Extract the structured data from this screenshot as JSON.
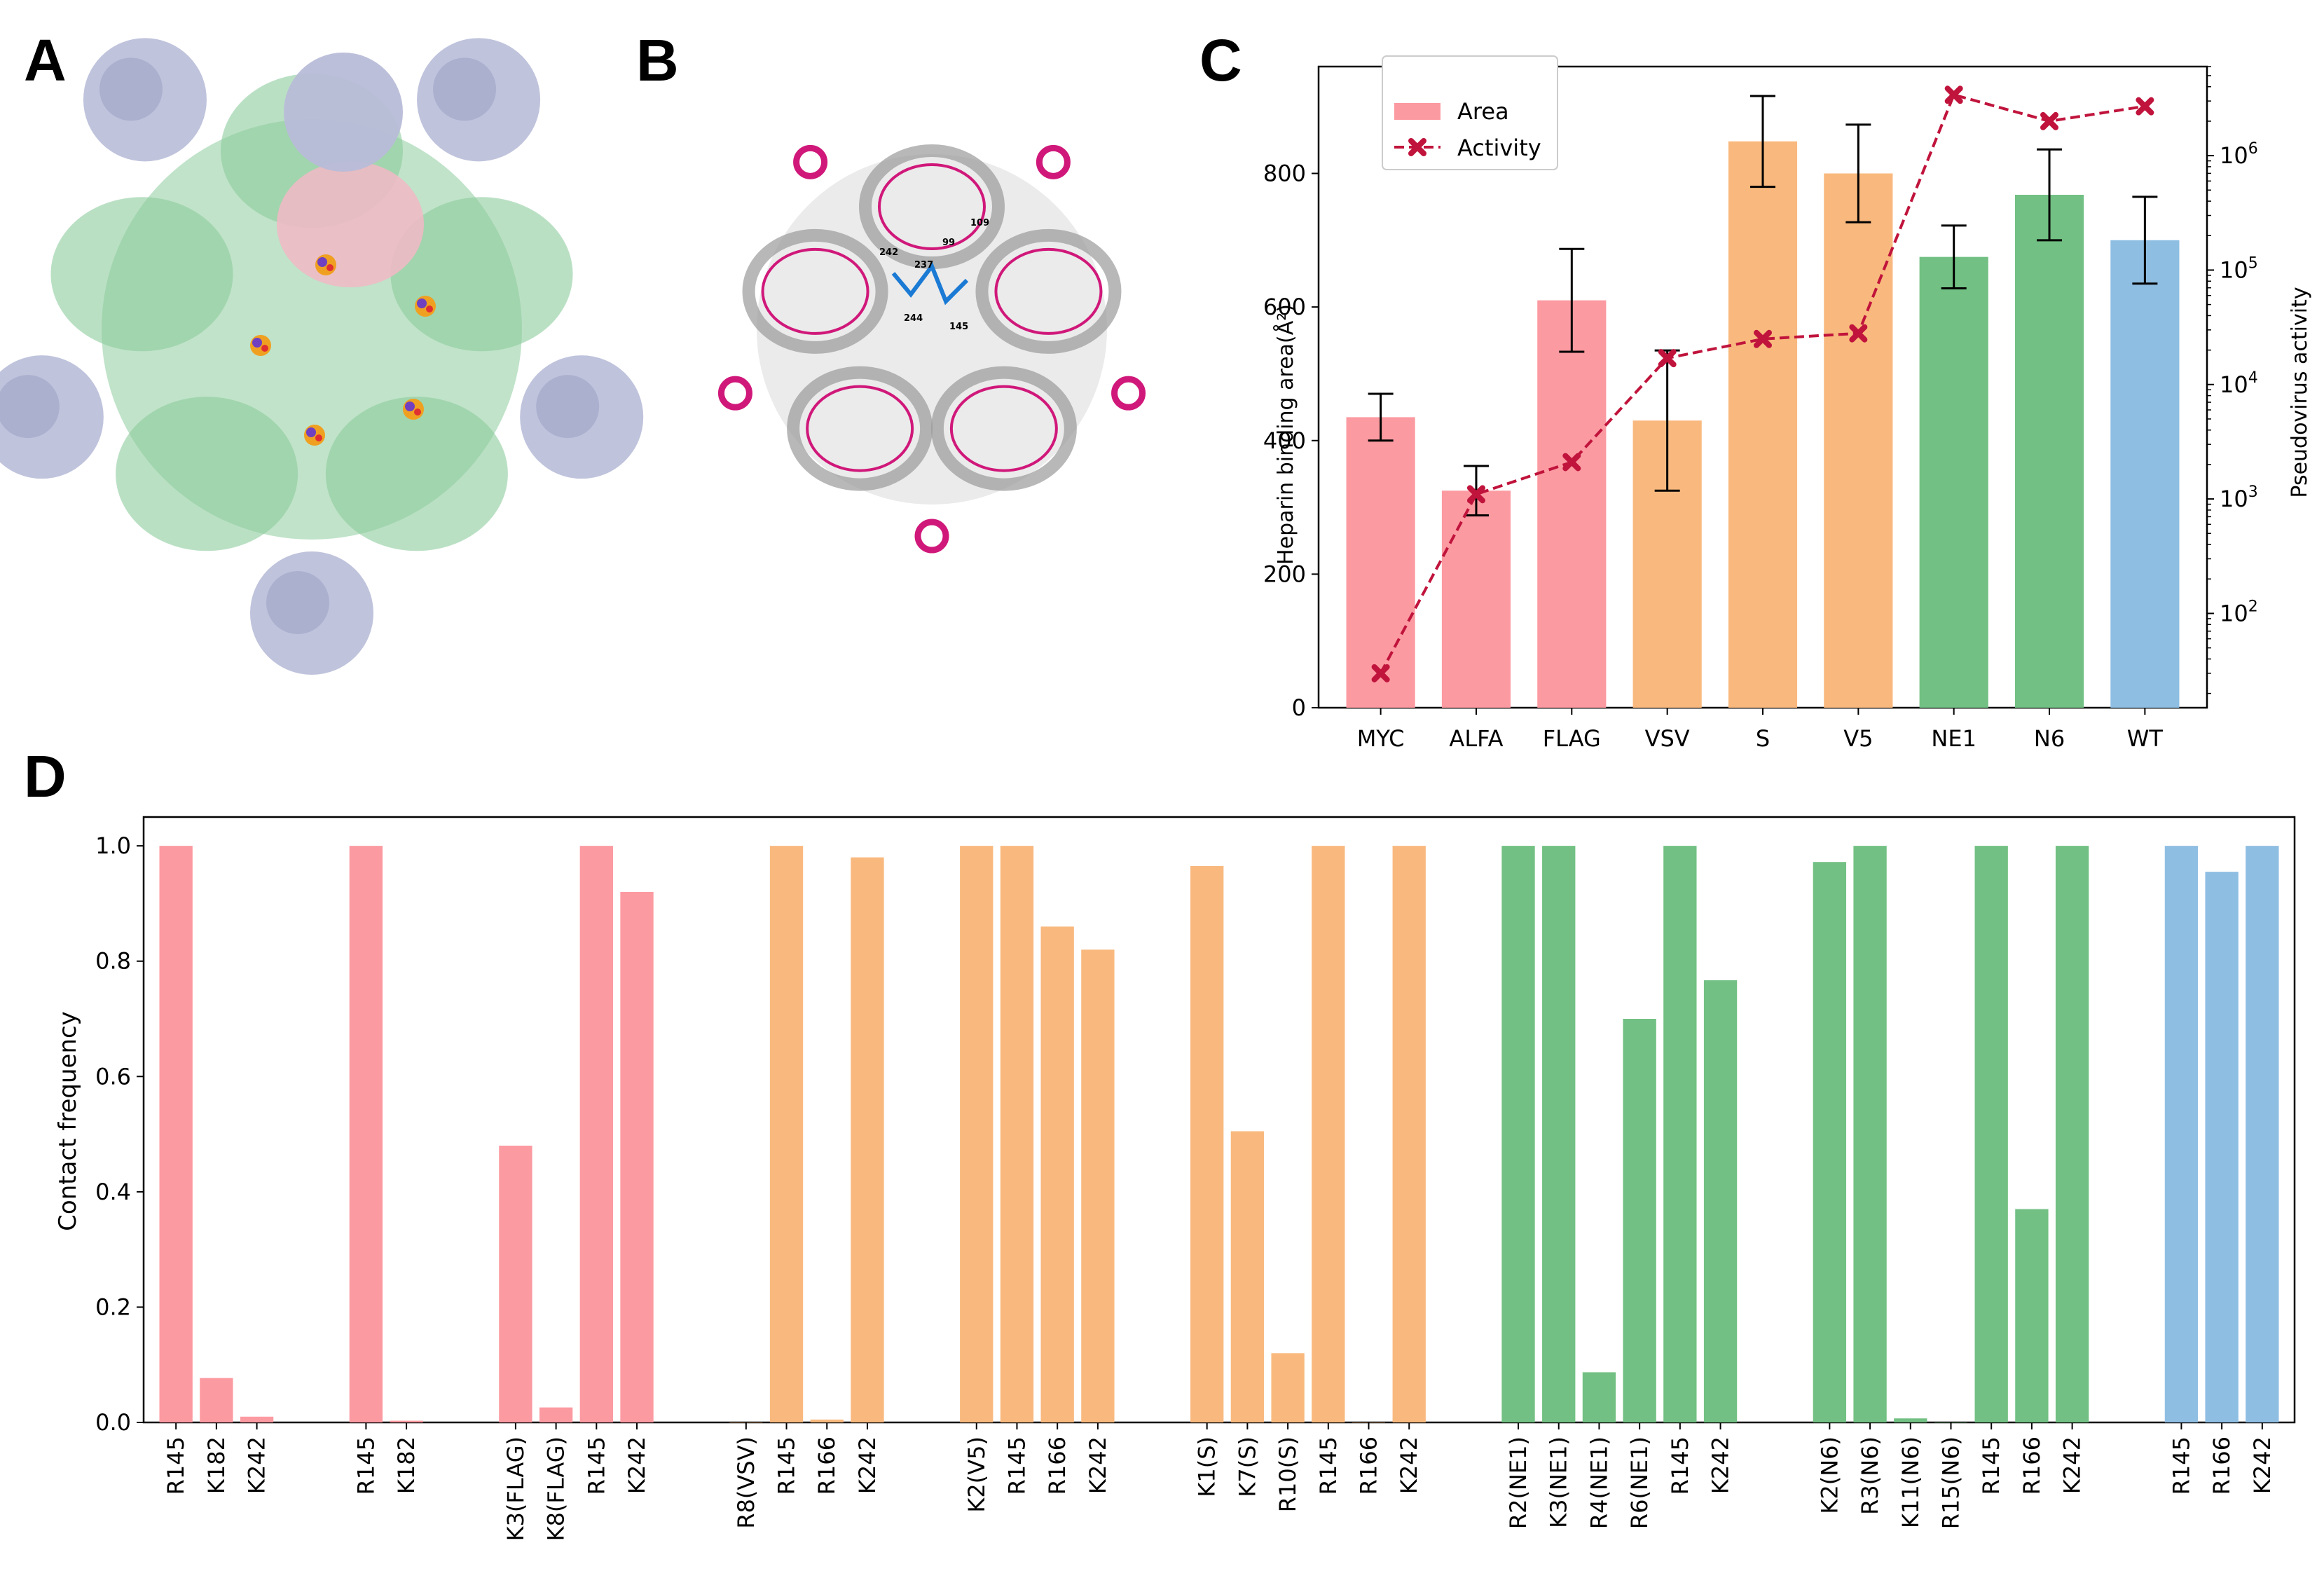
{
  "panels": {
    "a": "A",
    "b": "B",
    "c": "C",
    "d": "D"
  },
  "colors": {
    "pink": "#fc9aa1",
    "orange": "#f9b97e",
    "green": "#72c083",
    "blue": "#8fbee3",
    "activity": "#c0143c",
    "molecule_green": "#8ccc9c",
    "molecule_lavender": "#b8bcd8",
    "molecule_pink": "#f2b8c6",
    "molecule_magenta": "#d0187a",
    "molecule_gray": "#9a9a9a"
  },
  "structure_b_labels": [
    "109",
    "242",
    "99",
    "237",
    "244",
    "145"
  ],
  "chart_data": [
    {
      "id": "C",
      "type": "bar",
      "categories": [
        "MYC",
        "ALFA",
        "FLAG",
        "VSV",
        "S",
        "V5",
        "NE1",
        "N6",
        "WT"
      ],
      "bar_colors": [
        "pink",
        "pink",
        "pink",
        "orange",
        "orange",
        "orange",
        "green",
        "green",
        "blue"
      ],
      "series": [
        {
          "name": "Area",
          "type": "bar",
          "values": [
            435,
            325,
            610,
            430,
            848,
            800,
            675,
            768,
            700
          ],
          "errors": [
            35,
            37,
            77,
            105,
            68,
            73,
            47,
            68,
            65
          ]
        },
        {
          "name": "Activity",
          "type": "line",
          "style": "dashed",
          "marker": "x",
          "values": [
            30,
            1100,
            2100,
            17000,
            25000,
            28000,
            3400000,
            2000000,
            2700000
          ]
        }
      ],
      "ylabel": "Heparin binding area(Å²)",
      "ylabel_right": "Pseudovirus activity",
      "ylim": [
        0,
        960
      ],
      "yticks": [
        "0",
        "200",
        "400",
        "600",
        "800"
      ],
      "y2_scale": "log",
      "y2lim": [
        15,
        6000000
      ],
      "y2ticks": [
        {
          "base": "10",
          "exp": "2"
        },
        {
          "base": "10",
          "exp": "3"
        },
        {
          "base": "10",
          "exp": "4"
        },
        {
          "base": "10",
          "exp": "5"
        },
        {
          "base": "10",
          "exp": "6"
        }
      ],
      "legend": {
        "position": "top-left",
        "area_label": "Area",
        "activity_label": "Activity"
      }
    },
    {
      "id": "D",
      "type": "bar",
      "ylabel": "Contact frequency",
      "ylim": [
        0,
        1.05
      ],
      "yticks": [
        "0.0",
        "0.2",
        "0.4",
        "0.6",
        "0.8",
        "1.0"
      ],
      "groups": [
        {
          "color": "pink",
          "bars": [
            {
              "label": "R145",
              "value": 1.0
            },
            {
              "label": "K182",
              "value": 0.077
            },
            {
              "label": "K242",
              "value": 0.01
            }
          ]
        },
        {
          "color": "pink",
          "bars": [
            {
              "label": "R145",
              "value": 1.0
            },
            {
              "label": "K182",
              "value": 0.003
            }
          ]
        },
        {
          "color": "pink",
          "bars": [
            {
              "label": "K3(FLAG)",
              "value": 0.48
            },
            {
              "label": "K8(FLAG)",
              "value": 0.026
            },
            {
              "label": "R145",
              "value": 1.0
            },
            {
              "label": "K242",
              "value": 0.92
            }
          ]
        },
        {
          "color": "orange",
          "bars": [
            {
              "label": "R8(VSV)",
              "value": 0.0
            },
            {
              "label": "R145",
              "value": 1.0
            },
            {
              "label": "R166",
              "value": 0.005
            },
            {
              "label": "K242",
              "value": 0.98
            }
          ]
        },
        {
          "color": "orange",
          "bars": [
            {
              "label": "K2(V5)",
              "value": 1.0
            },
            {
              "label": "R145",
              "value": 1.0
            },
            {
              "label": "R166",
              "value": 0.86
            },
            {
              "label": "K242",
              "value": 0.82
            }
          ]
        },
        {
          "color": "orange",
          "bars": [
            {
              "label": "K1(S)",
              "value": 0.965
            },
            {
              "label": "K7(S)",
              "value": 0.505
            },
            {
              "label": "R10(S)",
              "value": 0.12
            },
            {
              "label": "R145",
              "value": 1.0
            },
            {
              "label": "R166",
              "value": 0.0
            },
            {
              "label": "K242",
              "value": 1.0
            }
          ]
        },
        {
          "color": "green",
          "bars": [
            {
              "label": "R2(NE1)",
              "value": 1.0
            },
            {
              "label": "K3(NE1)",
              "value": 1.0
            },
            {
              "label": "R4(NE1)",
              "value": 0.087
            },
            {
              "label": "R6(NE1)",
              "value": 0.7
            },
            {
              "label": "R145",
              "value": 1.0
            },
            {
              "label": "K242",
              "value": 0.767
            }
          ]
        },
        {
          "color": "green",
          "bars": [
            {
              "label": "K2(N6)",
              "value": 0.972
            },
            {
              "label": "R3(N6)",
              "value": 1.0
            },
            {
              "label": "K11(N6)",
              "value": 0.007
            },
            {
              "label": "R15(N6)",
              "value": 0.0
            },
            {
              "label": "R145",
              "value": 1.0
            },
            {
              "label": "R166",
              "value": 0.37
            },
            {
              "label": "K242",
              "value": 1.0
            }
          ]
        },
        {
          "color": "blue",
          "bars": [
            {
              "label": "R145",
              "value": 1.0
            },
            {
              "label": "R166",
              "value": 0.955
            },
            {
              "label": "K242",
              "value": 1.0
            }
          ]
        }
      ]
    }
  ]
}
